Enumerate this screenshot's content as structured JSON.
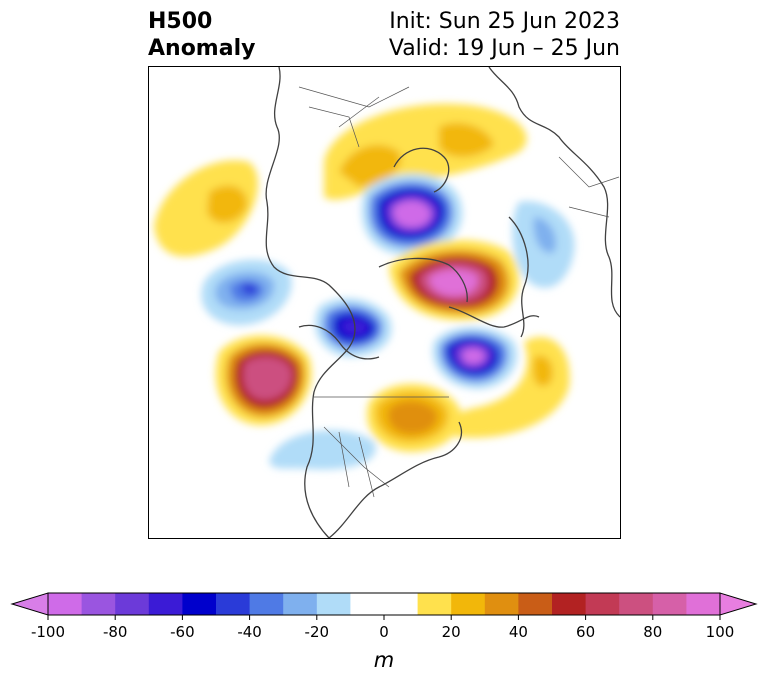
{
  "header": {
    "title_line1": "H500",
    "title_line2": "Anomaly",
    "init": "Init: Sun 25 Jun 2023",
    "valid": "Valid: 19 Jun – 25 Jun"
  },
  "colorbar": {
    "unit": "m",
    "ticks": [
      "-100",
      "-80",
      "-60",
      "-40",
      "-20",
      "0",
      "20",
      "40",
      "60",
      "80",
      "100"
    ],
    "levels": [
      -100,
      -90,
      -80,
      -70,
      -60,
      -50,
      -40,
      -30,
      -20,
      -10,
      10,
      20,
      30,
      40,
      50,
      60,
      70,
      80,
      90,
      100
    ],
    "colors": [
      "#cf6be8",
      "#9a55e0",
      "#6c3ad9",
      "#3b1bd6",
      "#0000cc",
      "#2a3bd8",
      "#4f7ae5",
      "#7fb0ee",
      "#b0dcf8",
      "#ffffff",
      "#ffe14d",
      "#f2b70a",
      "#e08f10",
      "#c95d17",
      "#b22222",
      "#c23a55",
      "#cc5080",
      "#d660a8",
      "#e070d8"
    ],
    "extend_low": "#d87ee8",
    "extend_high": "#e87ee0"
  },
  "map": {
    "projection": "north-polar-stereographic",
    "contour_fill": "H500 anomaly",
    "coastline_color": "#404040"
  }
}
